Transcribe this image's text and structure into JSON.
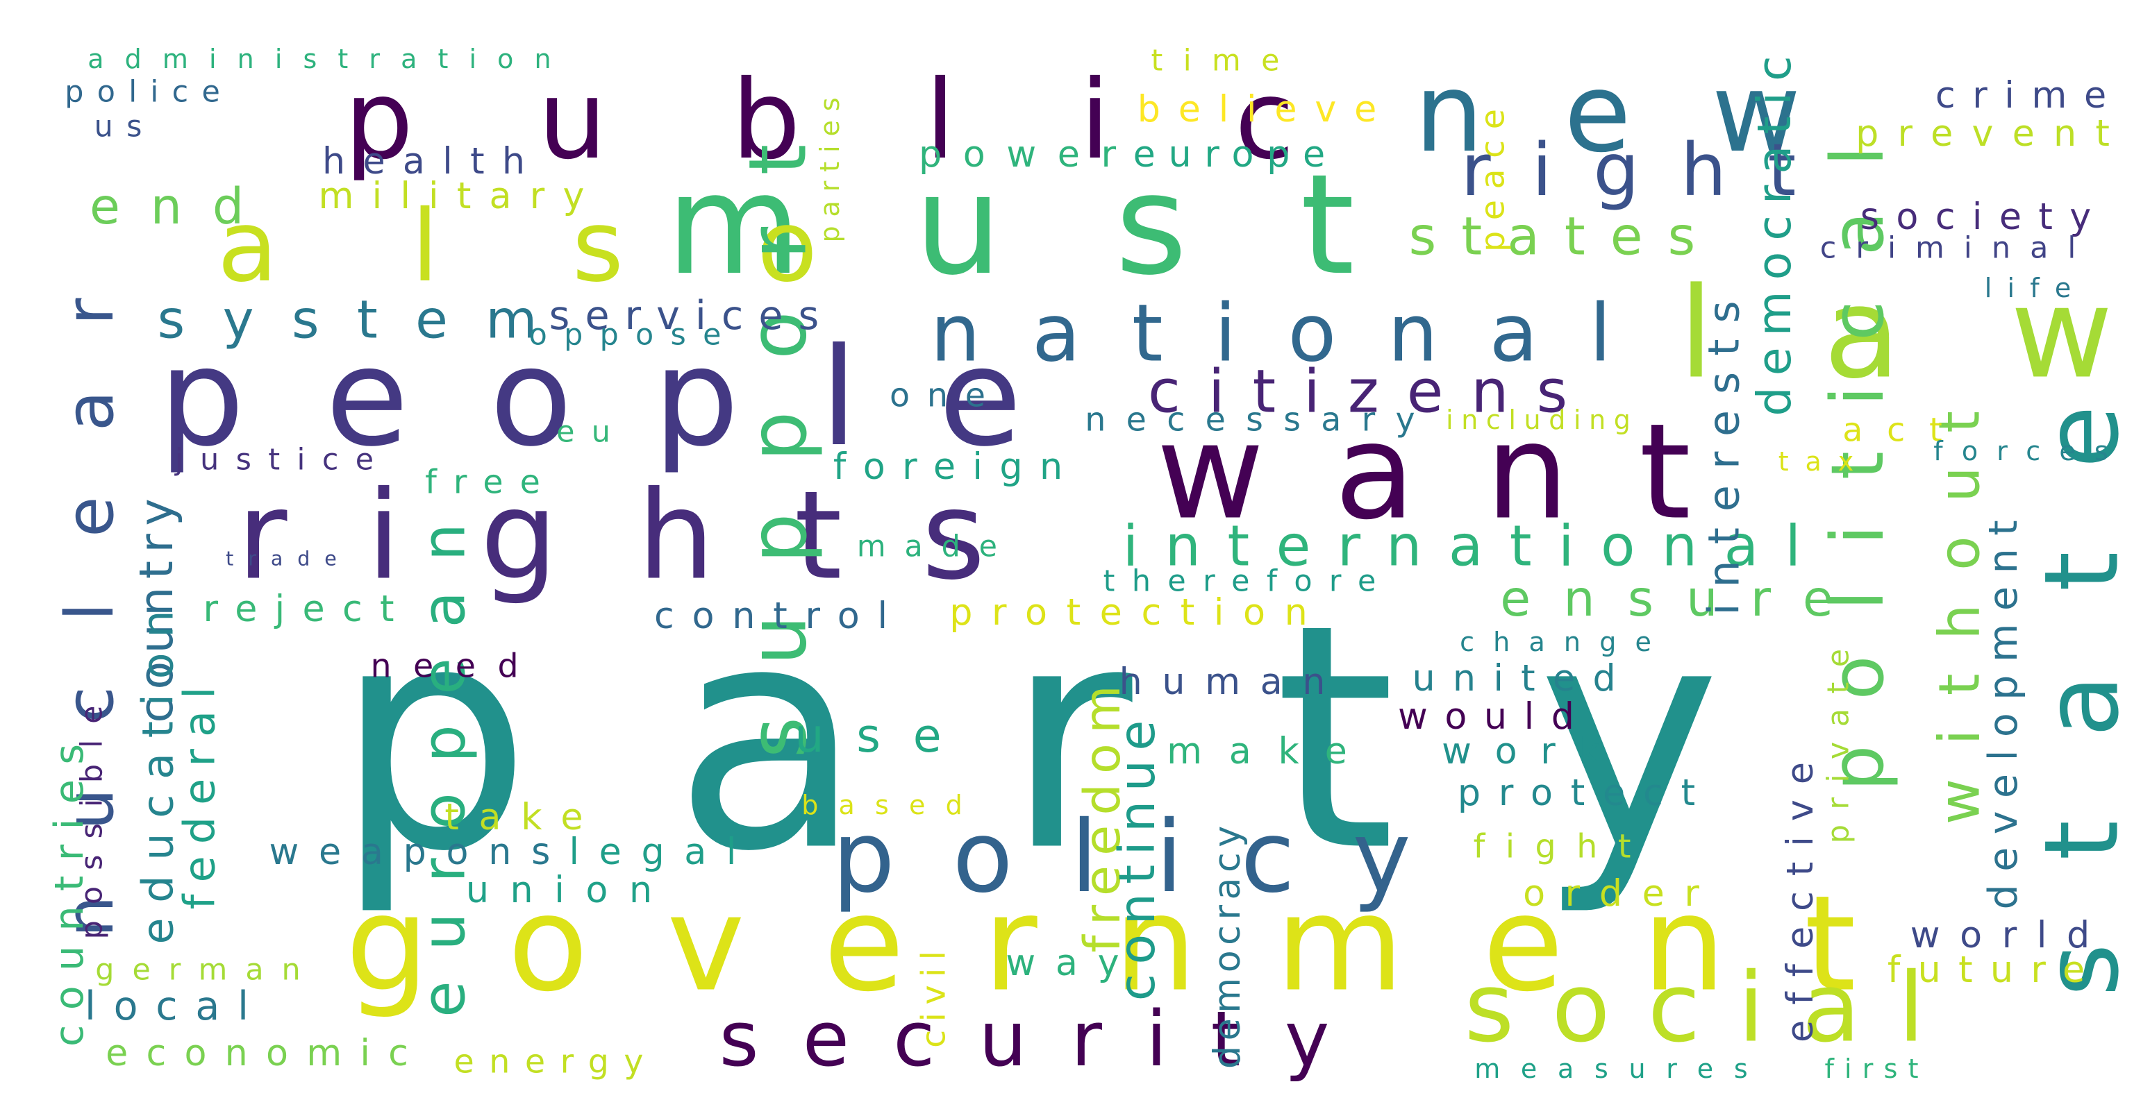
{
  "wordcloud": {
    "words": [
      {
        "text": "party",
        "color": "#21918c"
      },
      {
        "text": "must",
        "color": "#3dbc74"
      },
      {
        "text": "public",
        "color": "#440154"
      },
      {
        "text": "people",
        "color": "#443983"
      },
      {
        "text": "rights",
        "color": "#472d7b"
      },
      {
        "text": "government",
        "color": "#dde318"
      },
      {
        "text": "want",
        "color": "#440154"
      },
      {
        "text": "new",
        "color": "#2c728e"
      },
      {
        "text": "law",
        "color": "#a5db36"
      },
      {
        "text": "state",
        "color": "#21918c"
      },
      {
        "text": "also",
        "color": "#c8e020"
      },
      {
        "text": "policy",
        "color": "#33638d"
      },
      {
        "text": "social",
        "color": "#bddf26"
      },
      {
        "text": "security",
        "color": "#440154"
      },
      {
        "text": "national",
        "color": "#31688e"
      },
      {
        "text": "political",
        "color": "#5ec962"
      },
      {
        "text": "support",
        "color": "#3dbc74"
      },
      {
        "text": "right",
        "color": "#3b528b"
      },
      {
        "text": "international",
        "color": "#2fb47c"
      },
      {
        "text": "european",
        "color": "#29af7f"
      },
      {
        "text": "nuclear",
        "color": "#39568c"
      },
      {
        "text": "citizens",
        "color": "#482475"
      },
      {
        "text": "states",
        "color": "#7ad151"
      },
      {
        "text": "system",
        "color": "#2a788e"
      },
      {
        "text": "ensure",
        "color": "#5ec962"
      },
      {
        "text": "without",
        "color": "#7ad151"
      },
      {
        "text": "end",
        "color": "#6ccd5a"
      },
      {
        "text": "services",
        "color": "#3b528b"
      },
      {
        "text": "oppose",
        "color": "#25858e"
      },
      {
        "text": "health",
        "color": "#3e4a89"
      },
      {
        "text": "military",
        "color": "#c2df23"
      },
      {
        "text": "believe",
        "color": "#fde725"
      },
      {
        "text": "time",
        "color": "#c8e020"
      },
      {
        "text": "power",
        "color": "#2fb47c"
      },
      {
        "text": "europe",
        "color": "#22a884"
      },
      {
        "text": "crime",
        "color": "#3e4a89"
      },
      {
        "text": "prevent",
        "color": "#bddf26"
      },
      {
        "text": "society",
        "color": "#472c7a"
      },
      {
        "text": "criminal",
        "color": "#414487"
      },
      {
        "text": "life",
        "color": "#2a788e"
      },
      {
        "text": "democratic",
        "color": "#1f9e89"
      },
      {
        "text": "interests",
        "color": "#2e6e8e"
      },
      {
        "text": "peace",
        "color": "#dbe318"
      },
      {
        "text": "parties",
        "color": "#b5de2b"
      },
      {
        "text": "administration",
        "color": "#2db27d"
      },
      {
        "text": "police",
        "color": "#31688e"
      },
      {
        "text": "us",
        "color": "#3b528b"
      },
      {
        "text": "one",
        "color": "#2c728e"
      },
      {
        "text": "necessary",
        "color": "#2a788e"
      },
      {
        "text": "including",
        "color": "#c2df23"
      },
      {
        "text": "eu",
        "color": "#35b779"
      },
      {
        "text": "justice",
        "color": "#46337e"
      },
      {
        "text": "free",
        "color": "#2fb47c"
      },
      {
        "text": "foreign",
        "color": "#20a486"
      },
      {
        "text": "act",
        "color": "#dde318"
      },
      {
        "text": "tax",
        "color": "#dbe318"
      },
      {
        "text": "forces",
        "color": "#25858e"
      },
      {
        "text": "trade",
        "color": "#3e4a89"
      },
      {
        "text": "made",
        "color": "#2db27d"
      },
      {
        "text": "therefore",
        "color": "#1e9c89"
      },
      {
        "text": "country",
        "color": "#2e6e8e"
      },
      {
        "text": "reject",
        "color": "#38b977"
      },
      {
        "text": "control",
        "color": "#31688e"
      },
      {
        "text": "protection",
        "color": "#dde318"
      },
      {
        "text": "change",
        "color": "#25858e"
      },
      {
        "text": "need",
        "color": "#440154"
      },
      {
        "text": "human",
        "color": "#3b528b"
      },
      {
        "text": "united",
        "color": "#26828e"
      },
      {
        "text": "would",
        "color": "#440154"
      },
      {
        "text": "education",
        "color": "#25848e"
      },
      {
        "text": "federal",
        "color": "#1fa188"
      },
      {
        "text": "countries",
        "color": "#3aba76"
      },
      {
        "text": "possible",
        "color": "#482475"
      },
      {
        "text": "use",
        "color": "#22a884"
      },
      {
        "text": "freedom",
        "color": "#b5de2b"
      },
      {
        "text": "continue",
        "color": "#1e9b8a"
      },
      {
        "text": "make",
        "color": "#2fb47c"
      },
      {
        "text": "work",
        "color": "#21918c"
      },
      {
        "text": "private",
        "color": "#a5db36"
      },
      {
        "text": "development",
        "color": "#2c728e"
      },
      {
        "text": "effective",
        "color": "#3e4a89"
      },
      {
        "text": "protect",
        "color": "#23898e"
      },
      {
        "text": "take",
        "color": "#c2df23"
      },
      {
        "text": "based",
        "color": "#dbe318"
      },
      {
        "text": "weapons",
        "color": "#2a788e"
      },
      {
        "text": "legal",
        "color": "#1f9e89"
      },
      {
        "text": "fight",
        "color": "#b5de2b"
      },
      {
        "text": "union",
        "color": "#1fa188"
      },
      {
        "text": "order",
        "color": "#c8e020"
      },
      {
        "text": "german",
        "color": "#a5db36"
      },
      {
        "text": "world",
        "color": "#3e4a89"
      },
      {
        "text": "future",
        "color": "#c8e020"
      },
      {
        "text": "local",
        "color": "#2a788e"
      },
      {
        "text": "way",
        "color": "#2db27d"
      },
      {
        "text": "civil",
        "color": "#dbe318"
      },
      {
        "text": "democracy",
        "color": "#2a788e"
      },
      {
        "text": "economic",
        "color": "#7ad151"
      },
      {
        "text": "energy",
        "color": "#c2df23"
      },
      {
        "text": "measures",
        "color": "#1fa188"
      },
      {
        "text": "first",
        "color": "#2fb47c"
      }
    ]
  }
}
